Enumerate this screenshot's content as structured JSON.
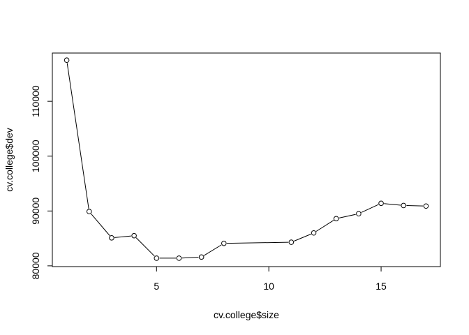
{
  "chart_data": {
    "type": "line",
    "xlabel": "cv.college$size",
    "ylabel": "cv.college$dev",
    "x": [
      1,
      2,
      3,
      4,
      5,
      6,
      7,
      8,
      11,
      12,
      13,
      14,
      15,
      16,
      17
    ],
    "series": [
      {
        "values": [
          117500,
          89900,
          85100,
          85500,
          81400,
          81400,
          81600,
          84100,
          84300,
          86000,
          88600,
          89500,
          91400,
          91000,
          90900
        ]
      }
    ],
    "xlim": [
      0.36,
      17.64
    ],
    "ylim": [
      79860,
      118800
    ],
    "xticks": [
      5,
      10,
      15
    ],
    "yticks": [
      80000,
      90000,
      100000,
      110000
    ],
    "grid": false,
    "markers": "open-circle"
  }
}
